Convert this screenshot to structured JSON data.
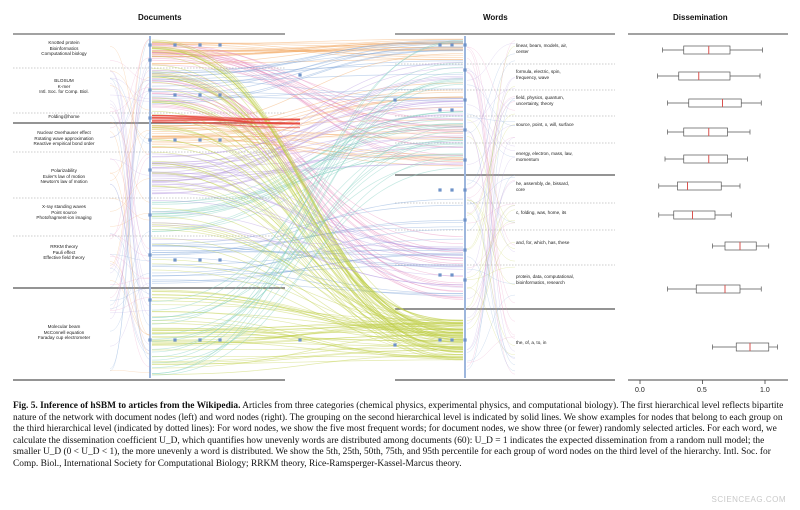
{
  "panels": {
    "documents_title": "Documents",
    "words_title": "Words",
    "dissemination_title": "Dissemination"
  },
  "document_groups": [
    "Knotted protein\nBioinformatics\nComputational biology",
    "BLOSUM\nK-mer\nIntl. Soc. for Comp. Biol.",
    "Folding@home",
    "Nuclear Overhauser effect\nRotating wave approximation\nReactive empirical bond order",
    "Polarizability\nEuler's law of motion\nNewton's law of motion",
    "X-ray standing waves\nPoint source\nPhotofragment-ion imaging",
    "RRKM theory\nPauli effect\nEffective field theory",
    "Molecular beam\nMcConnell equation\nFaraday cup electrometer"
  ],
  "word_groups": [
    "linear, beam, models, air,\ncenter",
    "formula, electric, spin,\nfrequency, wave",
    "field, physics, quantum,\nuncertainty, theory",
    "source, point, x, will, surface",
    "energy, electron, mass, law,\nmomentum",
    "he, assembly, de, bissard,\ncore",
    "c, folding, was, home, its",
    "and, for, which, has, these",
    "protein, data, computational,\nbioinformatics, research",
    "the, of, a, to, in"
  ],
  "dissemination": {
    "axis_ticks": [
      "0.0",
      "0.5",
      "1.0"
    ],
    "boxes": [
      {
        "p5": 0.18,
        "p25": 0.35,
        "p50": 0.55,
        "p75": 0.72,
        "p95": 0.98
      },
      {
        "p5": 0.14,
        "p25": 0.31,
        "p50": 0.47,
        "p75": 0.72,
        "p95": 0.96
      },
      {
        "p5": 0.22,
        "p25": 0.39,
        "p50": 0.66,
        "p75": 0.81,
        "p95": 0.97
      },
      {
        "p5": 0.22,
        "p25": 0.35,
        "p50": 0.55,
        "p75": 0.7,
        "p95": 0.88
      },
      {
        "p5": 0.2,
        "p25": 0.35,
        "p50": 0.55,
        "p75": 0.7,
        "p95": 0.86
      },
      {
        "p5": 0.15,
        "p25": 0.3,
        "p50": 0.38,
        "p75": 0.65,
        "p95": 0.8
      },
      {
        "p5": 0.15,
        "p25": 0.27,
        "p50": 0.42,
        "p75": 0.6,
        "p95": 0.73
      },
      {
        "p5": 0.58,
        "p25": 0.68,
        "p50": 0.8,
        "p75": 0.93,
        "p95": 1.03
      },
      {
        "p5": 0.22,
        "p25": 0.45,
        "p50": 0.68,
        "p75": 0.8,
        "p95": 0.97
      },
      {
        "p5": 0.58,
        "p25": 0.77,
        "p50": 0.88,
        "p75": 1.03,
        "p95": 1.1
      }
    ]
  },
  "caption": {
    "label": "Fig. 5.",
    "title": "Inference of hSBM to articles from the Wikipedia.",
    "body": "Articles from three categories (chemical physics, experimental physics, and computational biology). The first hierarchical level reflects bipartite nature of the network with document nodes (left) and word nodes (right). The grouping on the second hierarchical level is indicated by solid lines. We show examples for nodes that belong to each group on the third hierarchical level (indicated by dotted lines): For word nodes, we show the five most frequent words; for document nodes, we show three (or fewer) randomly selected articles. For each word, we calculate the dissemination coefficient U_D, which quantifies how unevenly words are distributed among documents (60): U_D = 1 indicates the expected dissemination from a random null model; the smaller U_D (0 < U_D < 1), the more unevenly a word is distributed. We show the 5th, 25th, 50th, 75th, and 95th percentile for each group of word nodes on the third level of the hierarchy. Intl. Soc. for Comp. Biol., International Society for Computational Biology; RRKM theory, Rice-Ramsperger-Kassel-Marcus theory."
  },
  "watermark": "SCIENCEAG.COM",
  "colors": {
    "orange": "#f2a35a",
    "pink": "#e98fbf",
    "blue": "#7aa2d6",
    "purple": "#b59adf",
    "yellowgreen": "#bfcf45",
    "teal": "#7fcfbf",
    "red": "#e8473e",
    "node": "#6f93c9"
  }
}
